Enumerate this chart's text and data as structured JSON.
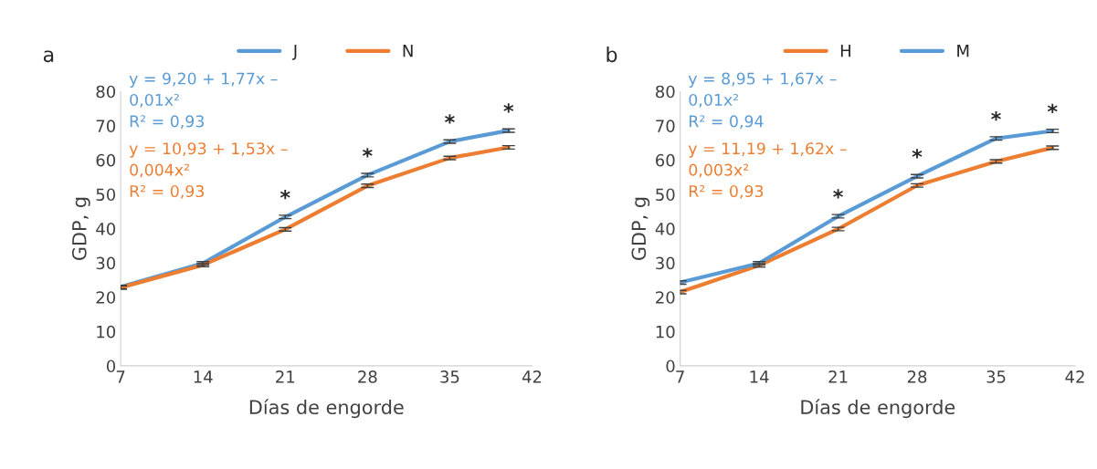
{
  "chart_data": [
    {
      "type": "line",
      "title": "a",
      "xlabel": "Días de engorde",
      "ylabel": "GDP, g",
      "x": [
        7,
        14,
        21,
        28,
        35,
        40
      ],
      "xlim": [
        7,
        42
      ],
      "xticks": [
        7,
        14,
        21,
        28,
        35,
        42
      ],
      "ylim": [
        0,
        80
      ],
      "yticks": [
        0,
        10,
        20,
        30,
        40,
        50,
        60,
        70,
        80
      ],
      "grid": false,
      "legend": "top",
      "marker": "none",
      "line_style": "solid",
      "series": [
        {
          "name": "J",
          "color": "#5b9bd5",
          "values": [
            23.0,
            29.9,
            43.4,
            55.6,
            65.4,
            68.6
          ],
          "errors": [
            0.5,
            0.5,
            0.5,
            0.5,
            0.5,
            0.5
          ]
        },
        {
          "name": "N",
          "color": "#ed7d31",
          "values": [
            22.8,
            29.4,
            39.8,
            52.5,
            60.6,
            63.7
          ],
          "errors": [
            0.5,
            0.5,
            0.5,
            0.5,
            0.5,
            0.5
          ]
        }
      ],
      "annotations": [
        "y = 9,20 + 1,77x –\n0,01x²\nR² = 0,93",
        "y = 10,93 + 1,53x –\n0,004x²\nR² = 0,93",
        {
          "text": "*",
          "x": 21,
          "y": 43.4
        },
        {
          "text": "*",
          "x": 28,
          "y": 55.6
        },
        {
          "text": "*",
          "x": 35,
          "y": 65.4
        },
        {
          "text": "*",
          "x": 40,
          "y": 68.6
        }
      ]
    },
    {
      "type": "line",
      "title": "b",
      "xlabel": "Días de engorde",
      "ylabel": "GDP, g",
      "x": [
        7,
        14,
        21,
        28,
        35,
        40
      ],
      "xlim": [
        7,
        42
      ],
      "xticks": [
        7,
        14,
        21,
        28,
        35,
        42
      ],
      "ylim": [
        0,
        80
      ],
      "yticks": [
        0,
        10,
        20,
        30,
        40,
        50,
        60,
        70,
        80
      ],
      "grid": false,
      "legend": "top",
      "marker": "none",
      "line_style": "solid",
      "series": [
        {
          "name": "H",
          "color": "#ed7d31",
          "values": [
            21.5,
            29.3,
            39.9,
            52.6,
            59.6,
            63.6
          ],
          "errors": [
            0.5,
            0.5,
            0.5,
            0.5,
            0.5,
            0.5
          ]
        },
        {
          "name": "M",
          "color": "#5b9bd5",
          "values": [
            24.3,
            29.9,
            43.6,
            55.3,
            66.3,
            68.5
          ],
          "errors": [
            0.5,
            0.5,
            0.5,
            0.5,
            0.5,
            0.5
          ]
        }
      ],
      "annotations": [
        "y = 8,95 + 1,67x –\n0,01x²\nR² = 0,94",
        "y = 11,19 + 1,62x –\n0,003x²\nR² = 0,93",
        {
          "text": "*",
          "x": 21,
          "y": 43.6
        },
        {
          "text": "*",
          "x": 28,
          "y": 55.3
        },
        {
          "text": "*",
          "x": 35,
          "y": 66.3
        },
        {
          "text": "*",
          "x": 40,
          "y": 68.5
        }
      ]
    }
  ]
}
